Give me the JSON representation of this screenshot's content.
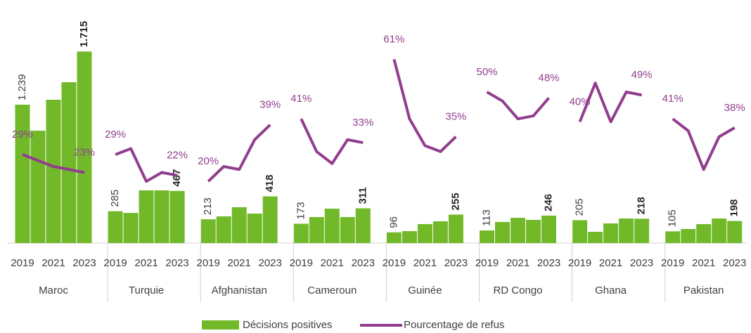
{
  "chart_data": {
    "type": "bar-line",
    "groups": [
      {
        "name": "Maroc",
        "x": [
          2019,
          null,
          2021,
          null,
          2023
        ]
      },
      {
        "name": "Turquie",
        "x": [
          2019,
          null,
          2021,
          null,
          2023
        ]
      },
      {
        "name": "Afghanistan",
        "x": [
          2019,
          null,
          2021,
          null,
          2023
        ]
      },
      {
        "name": "Cameroun",
        "x": [
          2019,
          null,
          2021,
          null,
          2023
        ]
      },
      {
        "name": "Guinée",
        "x": [
          2019,
          null,
          2021,
          null,
          2023
        ]
      },
      {
        "name": "RD Congo",
        "x": [
          2019,
          null,
          2021,
          null,
          2023
        ]
      },
      {
        "name": "Ghana",
        "x": [
          2019,
          null,
          2021,
          null,
          2023
        ]
      },
      {
        "name": "Pakistan",
        "x": [
          2019,
          null,
          2021,
          null,
          2023
        ]
      }
    ],
    "series": [
      {
        "name": "Décisions positives",
        "color": "#72b92a",
        "type": "bar",
        "values": [
          [
            1239,
            1006,
            1283,
            1440,
            1715
          ],
          [
            285,
            270,
            472,
            472,
            467
          ],
          [
            213,
            239,
            321,
            264,
            418
          ],
          [
            173,
            233,
            308,
            233,
            311
          ],
          [
            96,
            107,
            170,
            195,
            255
          ],
          [
            113,
            189,
            226,
            208,
            246
          ],
          [
            205,
            101,
            176,
            220,
            218
          ],
          [
            105,
            126,
            170,
            220,
            198
          ]
        ],
        "value_labels": [
          [
            "1.239",
            null,
            null,
            null,
            "1.715"
          ],
          [
            "285",
            null,
            null,
            null,
            "467"
          ],
          [
            "213",
            null,
            null,
            null,
            "418"
          ],
          [
            "173",
            null,
            null,
            null,
            "311"
          ],
          [
            "96",
            null,
            null,
            null,
            "255"
          ],
          [
            "113",
            null,
            null,
            null,
            "246"
          ],
          [
            "205",
            null,
            null,
            null,
            "218"
          ],
          [
            "105",
            null,
            null,
            null,
            "198"
          ]
        ]
      },
      {
        "name": "Pourcentage de refus",
        "color": "#913e8e",
        "type": "line",
        "axis": "y2",
        "values": [
          [
            29,
            27,
            25,
            24,
            23
          ],
          [
            29,
            31,
            20,
            23,
            22
          ],
          [
            20,
            25,
            24,
            34,
            39
          ],
          [
            41,
            30,
            26,
            34,
            33
          ],
          [
            61,
            41,
            32,
            30,
            35
          ],
          [
            50,
            47,
            41,
            42,
            48
          ],
          [
            40,
            53,
            40,
            50,
            49
          ],
          [
            41,
            37,
            24,
            35,
            38
          ]
        ],
        "value_labels": [
          [
            "29%",
            null,
            null,
            null,
            "23%"
          ],
          [
            "29%",
            null,
            null,
            null,
            "22%"
          ],
          [
            "20%",
            null,
            null,
            null,
            "39%"
          ],
          [
            "41%",
            null,
            null,
            null,
            "33%"
          ],
          [
            "61%",
            null,
            null,
            null,
            "35%"
          ],
          [
            "50%",
            null,
            null,
            null,
            "48%"
          ],
          [
            "40%",
            null,
            null,
            null,
            "49%"
          ],
          [
            "41%",
            null,
            null,
            null,
            "38%"
          ]
        ]
      }
    ],
    "ylim": [
      0,
      2000
    ],
    "y2lim": [
      0,
      75
    ]
  }
}
